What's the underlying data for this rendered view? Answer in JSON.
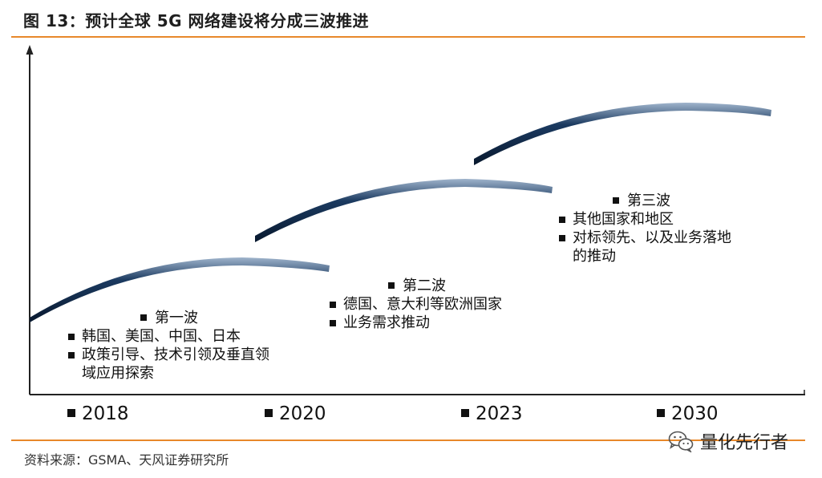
{
  "header": {
    "title": "图 13：预计全球 5G 网络建设将分成三波推进"
  },
  "waves": [
    {
      "title": "第一波",
      "lines": [
        "韩国、美国、中国、日本",
        "政策引导、技术引领及垂直领域应用探索"
      ]
    },
    {
      "title": "第二波",
      "lines": [
        "德国、意大利等欧洲国家",
        "业务需求推动"
      ]
    },
    {
      "title": "第三波",
      "lines": [
        "其他国家和地区",
        "对标领先、以及业务落地的推动"
      ]
    }
  ],
  "years": [
    "2018",
    "2020",
    "2023",
    "2030"
  ],
  "footer": {
    "source": "资料来源：GSMA、天风证券研究所"
  },
  "watermark": {
    "text": "量化先行者",
    "icon": "wechat-icon"
  },
  "colors": {
    "accent": "#e8882a",
    "wave": "#0f2a4a"
  }
}
